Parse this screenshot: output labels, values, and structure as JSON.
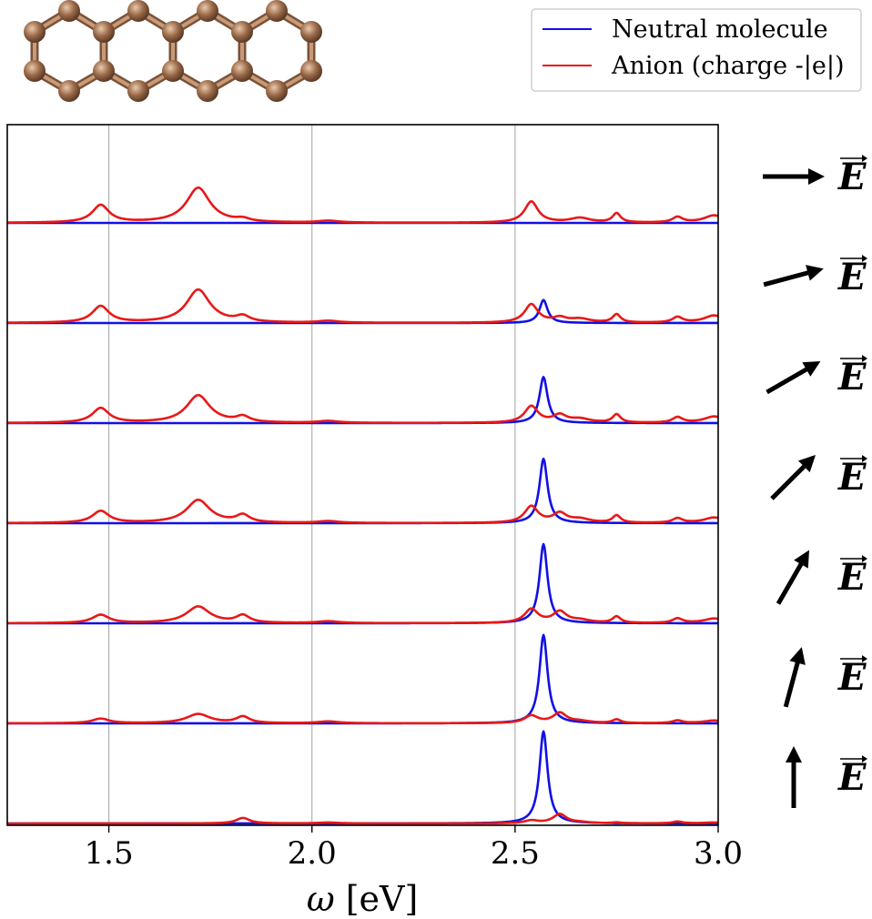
{
  "chart_data": {
    "type": "line",
    "xlabel_symbol": "ω",
    "xlabel_unit": "[eV]",
    "xlim": [
      1.25,
      3.0
    ],
    "xticks": [
      1.5,
      2.0,
      2.5,
      3.0
    ],
    "xtick_labels": [
      "1.5",
      "2.0",
      "2.5",
      "3.0"
    ],
    "grid_x": true,
    "legend_position": "top-right",
    "legend": [
      {
        "name": "Neutral molecule",
        "color": "#1010e8"
      },
      {
        "name": "Anion (charge -|e|)",
        "color": "#e81818"
      }
    ],
    "field_symbol": "E",
    "field_angles_deg": [
      0,
      15,
      30,
      45,
      60,
      75,
      90
    ],
    "neutral_peak": {
      "center": 2.57,
      "width": 0.012
    },
    "anion_peaks": [
      {
        "center": 1.48,
        "width": 0.025
      },
      {
        "center": 1.72,
        "width": 0.035
      },
      {
        "center": 1.83,
        "width": 0.02
      },
      {
        "center": 2.04,
        "width": 0.03
      },
      {
        "center": 2.54,
        "width": 0.02
      },
      {
        "center": 2.61,
        "width": 0.02
      },
      {
        "center": 2.66,
        "width": 0.03
      },
      {
        "center": 2.75,
        "width": 0.012
      },
      {
        "center": 2.9,
        "width": 0.015
      },
      {
        "center": 2.99,
        "width": 0.03
      }
    ],
    "series": [
      {
        "name": "Neutral molecule",
        "field_angle_deg": 0,
        "peak_amplitude": 0.0
      },
      {
        "name": "Neutral molecule",
        "field_angle_deg": 15,
        "peak_amplitude": 0.25
      },
      {
        "name": "Neutral molecule",
        "field_angle_deg": 30,
        "peak_amplitude": 0.5
      },
      {
        "name": "Neutral molecule",
        "field_angle_deg": 45,
        "peak_amplitude": 0.7
      },
      {
        "name": "Neutral molecule",
        "field_angle_deg": 60,
        "peak_amplitude": 0.86
      },
      {
        "name": "Neutral molecule",
        "field_angle_deg": 75,
        "peak_amplitude": 0.96
      },
      {
        "name": "Neutral molecule",
        "field_angle_deg": 90,
        "peak_amplitude": 1.0
      },
      {
        "name": "Anion (charge -|e|)",
        "field_angle_deg": 0,
        "peak_amplitudes": [
          0.19,
          0.38,
          0.03,
          0.02,
          0.23,
          0.0,
          0.05,
          0.1,
          0.06,
          0.08
        ]
      },
      {
        "name": "Anion (charge -|e|)",
        "field_angle_deg": 15,
        "peak_amplitudes": [
          0.18,
          0.36,
          0.06,
          0.02,
          0.2,
          0.05,
          0.04,
          0.09,
          0.06,
          0.08
        ]
      },
      {
        "name": "Anion (charge -|e|)",
        "field_angle_deg": 30,
        "peak_amplitudes": [
          0.16,
          0.3,
          0.06,
          0.02,
          0.18,
          0.08,
          0.04,
          0.09,
          0.06,
          0.07
        ]
      },
      {
        "name": "Anion (charge -|e|)",
        "field_angle_deg": 45,
        "peak_amplitudes": [
          0.13,
          0.25,
          0.08,
          0.02,
          0.18,
          0.1,
          0.04,
          0.08,
          0.05,
          0.06
        ]
      },
      {
        "name": "Anion (charge -|e|)",
        "field_angle_deg": 60,
        "peak_amplitudes": [
          0.09,
          0.18,
          0.08,
          0.02,
          0.15,
          0.12,
          0.03,
          0.07,
          0.05,
          0.05
        ]
      },
      {
        "name": "Anion (charge -|e|)",
        "field_angle_deg": 75,
        "peak_amplitudes": [
          0.05,
          0.1,
          0.07,
          0.02,
          0.08,
          0.11,
          0.02,
          0.04,
          0.03,
          0.03
        ]
      },
      {
        "name": "Anion (charge -|e|)",
        "field_angle_deg": 90,
        "peak_amplitudes": [
          0.0,
          0.0,
          0.06,
          0.01,
          0.03,
          0.1,
          0.01,
          0.01,
          0.02,
          0.01
        ]
      }
    ]
  }
}
